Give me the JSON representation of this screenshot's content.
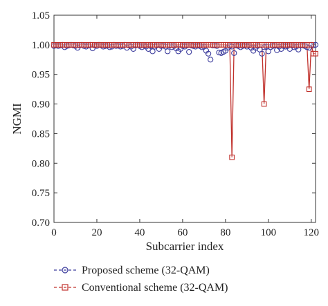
{
  "chart_data": {
    "type": "line",
    "xlabel": "Subcarrier index",
    "ylabel": "NGMI",
    "xlim": [
      0,
      122
    ],
    "ylim": [
      0.7,
      1.05
    ],
    "xticks": [
      0,
      20,
      40,
      60,
      80,
      100,
      120
    ],
    "yticks": [
      0.7,
      0.75,
      0.8,
      0.85,
      0.9,
      0.95,
      1.0,
      1.05
    ],
    "xtick_labels": [
      "0",
      "20",
      "40",
      "60",
      "80",
      "100",
      "120"
    ],
    "ytick_labels": [
      "0.70",
      "0.75",
      "0.80",
      "0.85",
      "0.90",
      "0.95",
      "1.00",
      "1.05"
    ],
    "legend_position": "bottom",
    "grid": false,
    "series": [
      {
        "name": "Proposed scheme (32-QAM)",
        "color": "#3b3b9c",
        "marker": "circle",
        "line": false,
        "x": [
          0,
          1,
          2,
          3,
          4,
          5,
          6,
          7,
          8,
          9,
          10,
          11,
          12,
          13,
          14,
          15,
          16,
          17,
          18,
          19,
          20,
          21,
          22,
          23,
          24,
          25,
          26,
          27,
          28,
          29,
          30,
          31,
          32,
          33,
          34,
          35,
          36,
          37,
          38,
          39,
          40,
          41,
          42,
          43,
          44,
          45,
          46,
          47,
          48,
          49,
          50,
          51,
          52,
          53,
          54,
          55,
          56,
          57,
          58,
          59,
          60,
          61,
          62,
          63,
          64,
          65,
          66,
          67,
          68,
          69,
          70,
          71,
          72,
          73,
          74,
          75,
          76,
          77,
          78,
          79,
          80,
          81,
          82,
          83,
          84,
          85,
          86,
          87,
          88,
          89,
          90,
          91,
          92,
          93,
          94,
          95,
          96,
          97,
          98,
          99,
          100,
          101,
          102,
          103,
          104,
          105,
          106,
          107,
          108,
          109,
          110,
          111,
          112,
          113,
          114,
          115,
          116,
          117,
          118,
          119,
          120,
          121,
          122
        ],
        "y": [
          0.998,
          0.999,
          0.998,
          0.999,
          1.0,
          0.996,
          0.998,
          0.999,
          1.0,
          0.999,
          0.998,
          0.995,
          0.999,
          1.0,
          0.998,
          0.997,
          0.999,
          1.0,
          0.994,
          0.999,
          0.998,
          1.0,
          0.999,
          0.997,
          0.998,
          0.999,
          0.996,
          0.997,
          1.0,
          0.998,
          0.999,
          0.997,
          0.998,
          1.0,
          0.995,
          0.999,
          0.997,
          0.993,
          0.999,
          1.0,
          0.998,
          0.996,
          0.999,
          0.997,
          0.993,
          0.998,
          0.989,
          0.997,
          0.999,
          0.993,
          0.998,
          0.999,
          0.997,
          0.989,
          0.999,
          0.996,
          0.998,
          0.994,
          0.989,
          0.993,
          0.998,
          0.997,
          0.999,
          0.988,
          0.999,
          0.998,
          0.997,
          0.999,
          0.998,
          0.996,
          0.997,
          0.99,
          0.985,
          0.975,
          0.999,
          0.999,
          0.998,
          0.987,
          0.986,
          0.988,
          0.99,
          0.995,
          0.998,
          0.997,
          0.986,
          0.999,
          0.998,
          0.996,
          0.998,
          0.999,
          0.997,
          0.999,
          0.995,
          0.99,
          0.995,
          0.998,
          0.992,
          0.985,
          0.996,
          0.997,
          0.989,
          0.996,
          0.998,
          0.999,
          0.991,
          0.997,
          0.993,
          0.998,
          0.997,
          0.998,
          0.993,
          0.999,
          0.996,
          0.997,
          0.992,
          0.999,
          0.999,
          0.998,
          0.996,
          0.995,
          1.0,
          0.999,
          1.0
        ]
      },
      {
        "name": "Conventional scheme (32-QAM)",
        "color": "#c0302b",
        "marker": "square",
        "line": true,
        "x": [
          0,
          1,
          2,
          3,
          4,
          5,
          6,
          7,
          8,
          9,
          10,
          11,
          12,
          13,
          14,
          15,
          16,
          17,
          18,
          19,
          20,
          21,
          22,
          23,
          24,
          25,
          26,
          27,
          28,
          29,
          30,
          31,
          32,
          33,
          34,
          35,
          36,
          37,
          38,
          39,
          40,
          41,
          42,
          43,
          44,
          45,
          46,
          47,
          48,
          49,
          50,
          51,
          52,
          53,
          54,
          55,
          56,
          57,
          58,
          59,
          60,
          61,
          62,
          63,
          64,
          65,
          66,
          67,
          68,
          69,
          70,
          71,
          72,
          73,
          74,
          75,
          76,
          77,
          78,
          79,
          80,
          81,
          82,
          83,
          84,
          85,
          86,
          87,
          88,
          89,
          90,
          91,
          92,
          93,
          94,
          95,
          96,
          97,
          98,
          99,
          100,
          101,
          102,
          103,
          104,
          105,
          106,
          107,
          108,
          109,
          110,
          111,
          112,
          113,
          114,
          115,
          116,
          117,
          118,
          119,
          120,
          121,
          122
        ],
        "y": [
          1.0,
          1.0,
          1.0,
          1.0,
          1.0,
          1.0,
          1.0,
          1.0,
          1.0,
          1.0,
          1.0,
          1.0,
          1.0,
          1.0,
          1.0,
          1.0,
          1.0,
          1.0,
          1.0,
          1.0,
          1.0,
          1.0,
          1.0,
          1.0,
          1.0,
          1.0,
          1.0,
          1.0,
          1.0,
          1.0,
          1.0,
          1.0,
          1.0,
          1.0,
          1.0,
          1.0,
          1.0,
          1.0,
          1.0,
          1.0,
          1.0,
          1.0,
          1.0,
          1.0,
          1.0,
          1.0,
          1.0,
          1.0,
          1.0,
          1.0,
          1.0,
          1.0,
          1.0,
          1.0,
          1.0,
          1.0,
          1.0,
          1.0,
          1.0,
          1.0,
          1.0,
          1.0,
          1.0,
          1.0,
          1.0,
          1.0,
          1.0,
          1.0,
          1.0,
          1.0,
          1.0,
          1.0,
          1.0,
          1.0,
          1.0,
          1.0,
          1.0,
          1.0,
          1.0,
          1.0,
          1.0,
          1.0,
          1.0,
          0.81,
          1.0,
          1.0,
          1.0,
          1.0,
          1.0,
          1.0,
          1.0,
          1.0,
          1.0,
          1.0,
          1.0,
          1.0,
          1.0,
          1.0,
          0.9,
          1.0,
          1.0,
          1.0,
          1.0,
          1.0,
          1.0,
          1.0,
          1.0,
          1.0,
          1.0,
          1.0,
          1.0,
          1.0,
          1.0,
          1.0,
          1.0,
          1.0,
          1.0,
          1.0,
          1.0,
          0.925,
          1.0,
          0.985,
          0.985
        ]
      }
    ]
  }
}
